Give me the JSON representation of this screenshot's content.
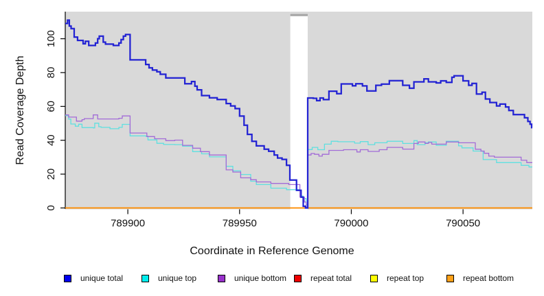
{
  "figure": {
    "background": "#ffffff",
    "plot_background": "#d9d9d9",
    "gap_cap_color": "#a3a3a3",
    "axis_color": "#000000",
    "text_color": "#111111"
  },
  "legend": {
    "items": [
      {
        "label": "unique total",
        "color": "#0000ee"
      },
      {
        "label": "unique top",
        "color": "#00eeee"
      },
      {
        "label": "unique bottom",
        "color": "#9932cc"
      },
      {
        "label": "repeat total",
        "color": "#ee0000"
      },
      {
        "label": "repeat top",
        "color": "#ffff00"
      },
      {
        "label": "repeat bottom",
        "color": "#ffa018"
      }
    ]
  },
  "chart_data": {
    "type": "line",
    "subtype": "step",
    "title": "",
    "xlabel": "Coordinate in Reference Genome",
    "ylabel": "Read Coverage Depth",
    "xlim": [
      789872,
      790081
    ],
    "ylim": [
      0,
      115.2
    ],
    "x_ticks": [
      789900,
      789950,
      790000,
      790050
    ],
    "y_ticks": [
      0,
      20,
      40,
      60,
      80,
      100
    ],
    "grid": false,
    "legend_position": "bottom",
    "plot_bg": "#d9d9d9",
    "gap_region": {
      "x_start": 789972.7,
      "x_end": 789980.5,
      "fill": "#ffffff",
      "cap_color": "#a3a3a3"
    },
    "series": [
      {
        "name": "repeat total",
        "color": "#dd0000",
        "width": 1.3,
        "points": [
          [
            789872,
            0
          ]
        ]
      },
      {
        "name": "repeat top",
        "color": "#ffff00",
        "width": 1.3,
        "points": [
          [
            789872,
            0
          ]
        ]
      },
      {
        "name": "repeat bottom",
        "color": "#ff8c00",
        "width": 1.8,
        "points": [
          [
            789872,
            0
          ]
        ]
      },
      {
        "name": "unique top",
        "color": "#5fe0e0",
        "width": 1.3,
        "points": [
          [
            789872,
            54.5
          ],
          [
            789873.5,
            52.5
          ],
          [
            789874.5,
            49.6
          ],
          [
            789876.5,
            48.3
          ],
          [
            789878,
            49.5
          ],
          [
            789879.5,
            47.5
          ],
          [
            789884.5,
            47.3
          ],
          [
            789885.2,
            50.1
          ],
          [
            789887,
            48
          ],
          [
            789888,
            47.6
          ],
          [
            789892,
            46.8
          ],
          [
            789896,
            47.6
          ],
          [
            789897.5,
            49.4
          ],
          [
            789901,
            42.6
          ],
          [
            789908,
            42.4
          ],
          [
            789909,
            40.2
          ],
          [
            789913,
            38.2
          ],
          [
            789916,
            37.5
          ],
          [
            789921,
            37.4
          ],
          [
            789924.5,
            36.5
          ],
          [
            789929,
            33.3
          ],
          [
            789933,
            32
          ],
          [
            789936.5,
            30.2
          ],
          [
            789944,
            24.6
          ],
          [
            789947,
            21.9
          ],
          [
            789950.5,
            19.8
          ],
          [
            789955,
            15.8
          ],
          [
            789957.5,
            13.8
          ],
          [
            789964,
            11.7
          ],
          [
            789971,
            10.8
          ],
          [
            789977,
            7
          ],
          [
            789978.5,
            5.6
          ],
          [
            789979.8,
            2
          ],
          [
            789980.5,
            34.5
          ],
          [
            789982.5,
            35.8
          ],
          [
            789985,
            34.4
          ],
          [
            789988,
            37.7
          ],
          [
            789991,
            39.4
          ],
          [
            789994,
            39.1
          ],
          [
            790001.5,
            38.3
          ],
          [
            790004,
            39.2
          ],
          [
            790007.5,
            37.4
          ],
          [
            790010.5,
            38.5
          ],
          [
            790016,
            39.4
          ],
          [
            790023,
            38.1
          ],
          [
            790028,
            39.8
          ],
          [
            790029.5,
            37.4
          ],
          [
            790033,
            38.5
          ],
          [
            790034.5,
            39
          ],
          [
            790038,
            37
          ],
          [
            790042.5,
            39.4
          ],
          [
            790048,
            36.7
          ],
          [
            790049.5,
            35.5
          ],
          [
            790054.5,
            33.6
          ],
          [
            790059,
            28.6
          ],
          [
            790065,
            26.8
          ],
          [
            790076,
            25.2
          ],
          [
            790079.5,
            24.2
          ]
        ]
      },
      {
        "name": "unique bottom",
        "color": "#a26bd8",
        "width": 1.3,
        "points": [
          [
            789872,
            55
          ],
          [
            789873.5,
            53.7
          ],
          [
            789877,
            51.3
          ],
          [
            789879.5,
            52.2
          ],
          [
            789880.5,
            52.8
          ],
          [
            789884.5,
            55
          ],
          [
            789886.5,
            52.6
          ],
          [
            789896,
            53
          ],
          [
            789897.5,
            54.4
          ],
          [
            789901,
            44.3
          ],
          [
            789908.5,
            42.2
          ],
          [
            789912,
            40.9
          ],
          [
            789917,
            39.8
          ],
          [
            789921,
            40.1
          ],
          [
            789924.5,
            37
          ],
          [
            789929,
            35.3
          ],
          [
            789932.5,
            33.3
          ],
          [
            789936.5,
            31.3
          ],
          [
            789944,
            22.5
          ],
          [
            789947,
            21.2
          ],
          [
            789950.5,
            17.8
          ],
          [
            789955,
            16.7
          ],
          [
            789957.5,
            15.4
          ],
          [
            789964,
            14.5
          ],
          [
            789972,
            13.8
          ],
          [
            789977,
            6.4
          ],
          [
            789979,
            3.5
          ],
          [
            789979.8,
            0.5
          ],
          [
            789980.5,
            31.3
          ],
          [
            789982,
            32.2
          ],
          [
            789983.5,
            31.7
          ],
          [
            789985.5,
            30.6
          ],
          [
            789987,
            31.7
          ],
          [
            789990,
            34
          ],
          [
            789996.5,
            34.4
          ],
          [
            790002.5,
            33.1
          ],
          [
            790004,
            34.4
          ],
          [
            790007.5,
            33.4
          ],
          [
            790012.5,
            34.4
          ],
          [
            790016,
            35.8
          ],
          [
            790023,
            34.8
          ],
          [
            790028,
            38.1
          ],
          [
            790030,
            39
          ],
          [
            790033,
            38.1
          ],
          [
            790034.5,
            38.7
          ],
          [
            790036,
            37.7
          ],
          [
            790042.5,
            39
          ],
          [
            790048,
            38.5
          ],
          [
            790055.5,
            34.7
          ],
          [
            790058,
            33.6
          ],
          [
            790059.5,
            32.3
          ],
          [
            790061.5,
            30.6
          ],
          [
            790064,
            30
          ],
          [
            790076,
            28.2
          ],
          [
            790078.5,
            26.8
          ]
        ]
      },
      {
        "name": "unique total",
        "color": "#2222d3",
        "width": 2.25,
        "points": [
          [
            789872,
            109
          ],
          [
            789873,
            111
          ],
          [
            789873.8,
            107.5
          ],
          [
            789874.6,
            106
          ],
          [
            789876,
            101
          ],
          [
            789877.5,
            99
          ],
          [
            789880,
            97
          ],
          [
            789881,
            98.5
          ],
          [
            789882.5,
            96
          ],
          [
            789885.5,
            97.5
          ],
          [
            789886.5,
            100
          ],
          [
            789887.2,
            101.5
          ],
          [
            789889,
            98
          ],
          [
            789890,
            96.8
          ],
          [
            789893.5,
            96
          ],
          [
            789896,
            97.5
          ],
          [
            789897,
            99.5
          ],
          [
            789898,
            101.5
          ],
          [
            789899,
            102.5
          ],
          [
            789901,
            87.5
          ],
          [
            789908,
            84.8
          ],
          [
            789909.5,
            82.8
          ],
          [
            789911,
            81.5
          ],
          [
            789913,
            80.5
          ],
          [
            789914.5,
            79
          ],
          [
            789917,
            76.8
          ],
          [
            789925.5,
            73.4
          ],
          [
            789928.5,
            74.7
          ],
          [
            789930,
            72
          ],
          [
            789931,
            69.8
          ],
          [
            789933,
            66.4
          ],
          [
            789936.5,
            65.1
          ],
          [
            789940,
            64.1
          ],
          [
            789944,
            61.7
          ],
          [
            789946,
            60.3
          ],
          [
            789948,
            58.7
          ],
          [
            789950,
            54.3
          ],
          [
            789952,
            48.9
          ],
          [
            789953.5,
            43.5
          ],
          [
            789955.5,
            39.4
          ],
          [
            789957.5,
            36.7
          ],
          [
            789961,
            34.7
          ],
          [
            789963,
            33.5
          ],
          [
            789965.5,
            31.3
          ],
          [
            789967,
            29.5
          ],
          [
            789969,
            28.7
          ],
          [
            789971,
            25.2
          ],
          [
            789972.5,
            16.5
          ],
          [
            789975.5,
            10.4
          ],
          [
            789977.5,
            6.4
          ],
          [
            789978.5,
            1
          ],
          [
            789979.5,
            0
          ],
          [
            789980.5,
            65
          ],
          [
            789983,
            64.8
          ],
          [
            789984.5,
            63.4
          ],
          [
            789986,
            65
          ],
          [
            789987.5,
            64
          ],
          [
            789990,
            69
          ],
          [
            789993.5,
            67.5
          ],
          [
            789995.5,
            73.3
          ],
          [
            790000.5,
            72.2
          ],
          [
            790002,
            73.4
          ],
          [
            790005,
            72.1
          ],
          [
            790007,
            69.1
          ],
          [
            790011,
            72.5
          ],
          [
            790013.5,
            73.2
          ],
          [
            790017,
            75.2
          ],
          [
            790023,
            72.5
          ],
          [
            790026,
            70.8
          ],
          [
            790028,
            74.5
          ],
          [
            790032.5,
            76.3
          ],
          [
            790034.5,
            74.5
          ],
          [
            790038,
            73.9
          ],
          [
            790040,
            75.1
          ],
          [
            790042.5,
            74.2
          ],
          [
            790045,
            77.2
          ],
          [
            790046,
            78.1
          ],
          [
            790050,
            75.1
          ],
          [
            790052.5,
            72.5
          ],
          [
            790054,
            73.6
          ],
          [
            790056,
            67.3
          ],
          [
            790058.5,
            68.4
          ],
          [
            790060,
            64.4
          ],
          [
            790062,
            62.3
          ],
          [
            790065,
            60.3
          ],
          [
            790066.5,
            61.4
          ],
          [
            790069,
            59.7
          ],
          [
            790070.5,
            57.6
          ],
          [
            790072.5,
            55.2
          ],
          [
            790077.5,
            53.3
          ],
          [
            790079,
            51.1
          ],
          [
            790080,
            49.5
          ],
          [
            790080.7,
            47.5
          ]
        ]
      }
    ]
  }
}
